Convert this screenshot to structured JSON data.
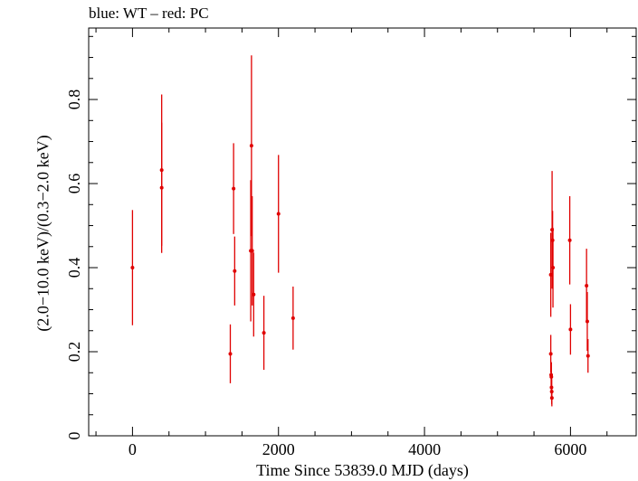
{
  "chart_data": {
    "type": "scatter",
    "title": "blue: WT – red: PC",
    "xlabel": "Time Since 53839.0 MJD (days)",
    "ylabel": "(2.0−10.0 keV)/(0.3−2.0 keV)",
    "xlim": [
      -600,
      6900
    ],
    "ylim": [
      0,
      0.97
    ],
    "xticks": [
      0,
      2000,
      4000,
      6000
    ],
    "xtick_labels": [
      "0",
      "2000",
      "4000",
      "6000"
    ],
    "yticks": [
      0,
      0.2,
      0.4,
      0.6,
      0.8
    ],
    "ytick_labels": [
      "0",
      "0.2",
      "0.4",
      "0.6",
      "0.8"
    ],
    "grid": false,
    "series": [
      {
        "color": "#e00000",
        "points": [
          {
            "x": 0,
            "y": 0.4,
            "err": 0.137
          },
          {
            "x": 400,
            "y": 0.59,
            "err": 0.155
          },
          {
            "x": 400,
            "y": 0.632,
            "err": 0.18
          },
          {
            "x": 1340,
            "y": 0.195,
            "err": 0.07
          },
          {
            "x": 1385,
            "y": 0.588,
            "err": 0.108
          },
          {
            "x": 1400,
            "y": 0.392,
            "err": 0.082
          },
          {
            "x": 1620,
            "y": 0.44,
            "err": 0.168
          },
          {
            "x": 1630,
            "y": 0.69,
            "err": 0.215
          },
          {
            "x": 1640,
            "y": 0.44,
            "err": 0.13
          },
          {
            "x": 1660,
            "y": 0.336,
            "err": 0.1
          },
          {
            "x": 1800,
            "y": 0.245,
            "err": 0.088
          },
          {
            "x": 2000,
            "y": 0.528,
            "err": 0.14
          },
          {
            "x": 2200,
            "y": 0.28,
            "err": 0.075
          },
          {
            "x": 5730,
            "y": 0.383,
            "err": 0.1
          },
          {
            "x": 5730,
            "y": 0.195,
            "err": 0.045
          },
          {
            "x": 5735,
            "y": 0.145,
            "err": 0.03
          },
          {
            "x": 5738,
            "y": 0.14,
            "err": 0.035
          },
          {
            "x": 5740,
            "y": 0.115,
            "err": 0.025
          },
          {
            "x": 5743,
            "y": 0.105,
            "err": 0.03
          },
          {
            "x": 5745,
            "y": 0.09,
            "err": 0.02
          },
          {
            "x": 5748,
            "y": 0.49,
            "err": 0.14
          },
          {
            "x": 5755,
            "y": 0.465,
            "err": 0.07
          },
          {
            "x": 5760,
            "y": 0.4,
            "err": 0.095
          },
          {
            "x": 5990,
            "y": 0.465,
            "err": 0.105
          },
          {
            "x": 6000,
            "y": 0.253,
            "err": 0.06
          },
          {
            "x": 6220,
            "y": 0.357,
            "err": 0.088
          },
          {
            "x": 6230,
            "y": 0.272,
            "err": 0.07
          },
          {
            "x": 6240,
            "y": 0.19,
            "err": 0.04
          }
        ]
      }
    ]
  }
}
